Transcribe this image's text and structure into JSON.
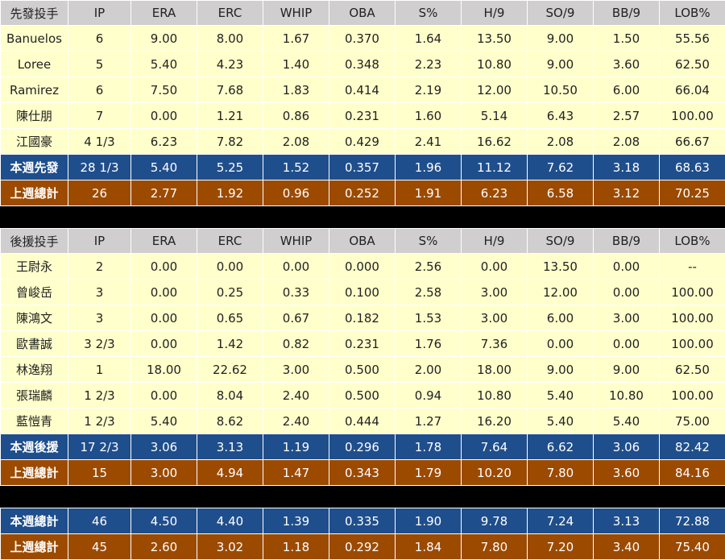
{
  "columns": [
    "IP",
    "ERA",
    "ERC",
    "WHIP",
    "OBA",
    "S%",
    "H/9",
    "SO/9",
    "BB/9",
    "LOB%"
  ],
  "starters": {
    "header": "先發投手",
    "rows": [
      {
        "name": "Banuelos",
        "v": [
          "6",
          "9.00",
          "8.00",
          "1.67",
          "0.370",
          "1.64",
          "13.50",
          "9.00",
          "1.50",
          "55.56"
        ]
      },
      {
        "name": "Loree",
        "v": [
          "5",
          "5.40",
          "4.23",
          "1.40",
          "0.348",
          "2.23",
          "10.80",
          "9.00",
          "3.60",
          "62.50"
        ]
      },
      {
        "name": "Ramirez",
        "v": [
          "6",
          "7.50",
          "7.68",
          "1.83",
          "0.414",
          "2.19",
          "12.00",
          "10.50",
          "6.00",
          "66.04"
        ]
      },
      {
        "name": "陳仕朋",
        "v": [
          "7",
          "0.00",
          "1.21",
          "0.86",
          "0.231",
          "1.60",
          "5.14",
          "6.43",
          "2.57",
          "100.00"
        ]
      },
      {
        "name": "江國豪",
        "v": [
          "4 1/3",
          "6.23",
          "7.82",
          "2.08",
          "0.429",
          "2.41",
          "16.62",
          "2.08",
          "2.08",
          "66.67"
        ]
      }
    ],
    "week": {
      "name": "本週先發",
      "v": [
        "28 1/3",
        "5.40",
        "5.25",
        "1.52",
        "0.357",
        "1.96",
        "11.12",
        "7.62",
        "3.18",
        "68.63"
      ]
    },
    "last": {
      "name": "上週總計",
      "v": [
        "26",
        "2.77",
        "1.92",
        "0.96",
        "0.252",
        "1.91",
        "6.23",
        "6.58",
        "3.12",
        "70.25"
      ]
    }
  },
  "relievers": {
    "header": "後援投手",
    "rows": [
      {
        "name": "王尉永",
        "v": [
          "2",
          "0.00",
          "0.00",
          "0.00",
          "0.000",
          "2.56",
          "0.00",
          "13.50",
          "0.00",
          "--"
        ]
      },
      {
        "name": "曾峻岳",
        "v": [
          "3",
          "0.00",
          "0.25",
          "0.33",
          "0.100",
          "2.58",
          "3.00",
          "12.00",
          "0.00",
          "100.00"
        ]
      },
      {
        "name": "陳鴻文",
        "v": [
          "3",
          "0.00",
          "0.65",
          "0.67",
          "0.182",
          "1.53",
          "3.00",
          "6.00",
          "3.00",
          "100.00"
        ]
      },
      {
        "name": "歐書誠",
        "v": [
          "3 2/3",
          "0.00",
          "1.42",
          "0.82",
          "0.231",
          "1.76",
          "7.36",
          "0.00",
          "0.00",
          "100.00"
        ]
      },
      {
        "name": "林逸翔",
        "v": [
          "1",
          "18.00",
          "22.62",
          "3.00",
          "0.500",
          "2.00",
          "18.00",
          "9.00",
          "9.00",
          "62.50"
        ]
      },
      {
        "name": "張瑞麟",
        "v": [
          "1 2/3",
          "0.00",
          "8.04",
          "2.40",
          "0.500",
          "0.94",
          "10.80",
          "5.40",
          "10.80",
          "100.00"
        ]
      },
      {
        "name": "藍愷青",
        "v": [
          "1 2/3",
          "5.40",
          "8.62",
          "2.40",
          "0.444",
          "1.27",
          "16.20",
          "5.40",
          "5.40",
          "75.00"
        ]
      }
    ],
    "week": {
      "name": "本週後援",
      "v": [
        "17 2/3",
        "3.06",
        "3.13",
        "1.19",
        "0.296",
        "1.78",
        "7.64",
        "6.62",
        "3.06",
        "82.42"
      ]
    },
    "last": {
      "name": "上週總計",
      "v": [
        "15",
        "3.00",
        "4.94",
        "1.47",
        "0.343",
        "1.79",
        "10.20",
        "7.80",
        "3.60",
        "84.16"
      ]
    }
  },
  "totals": {
    "week": {
      "name": "本週總計",
      "v": [
        "46",
        "4.50",
        "4.40",
        "1.39",
        "0.335",
        "1.90",
        "9.78",
        "7.24",
        "3.13",
        "72.88"
      ]
    },
    "last": {
      "name": "上週總計",
      "v": [
        "45",
        "2.60",
        "3.02",
        "1.18",
        "0.292",
        "1.84",
        "7.80",
        "7.20",
        "3.40",
        "75.40"
      ]
    }
  }
}
